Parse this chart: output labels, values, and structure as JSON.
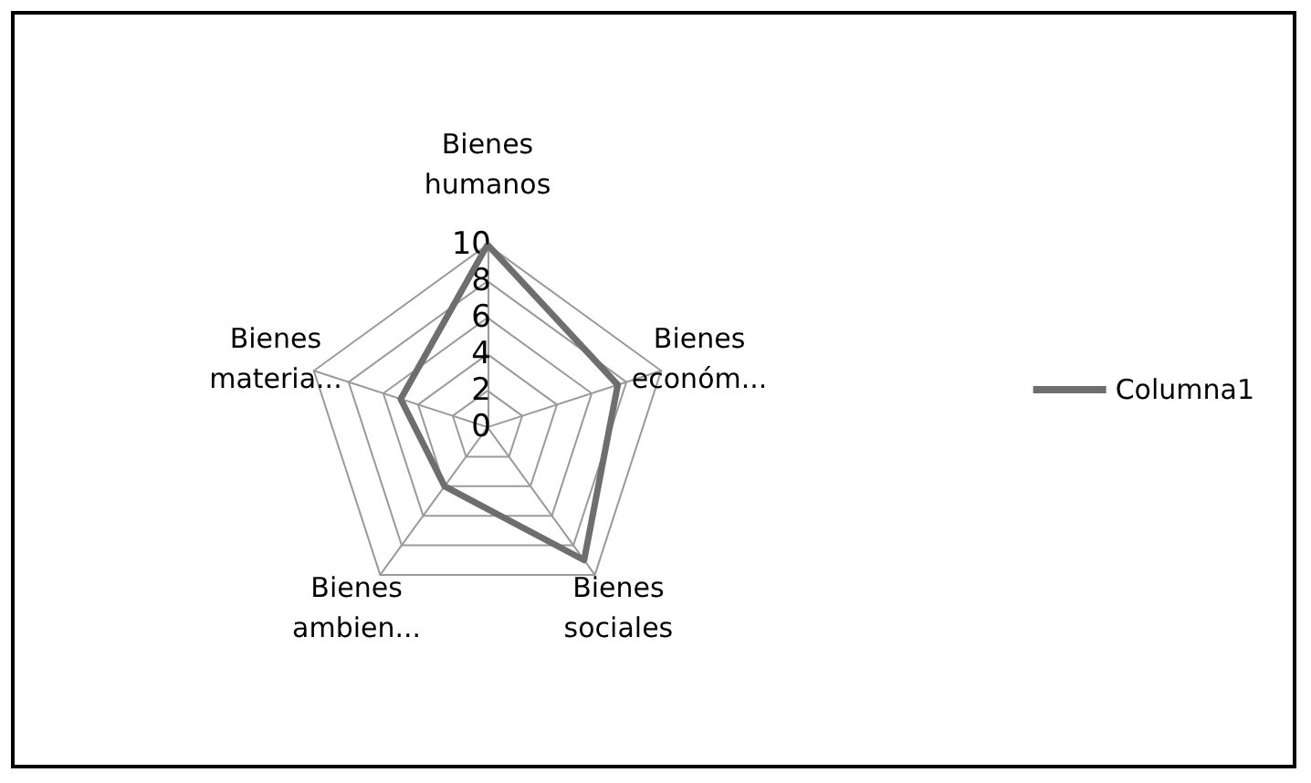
{
  "chart_data": {
    "type": "radar",
    "categories": [
      "Bienes humanos",
      "Bienes económ...",
      "Bienes sociales",
      "Bienes ambien...",
      "Bienes materia..."
    ],
    "series": [
      {
        "name": "Columna1",
        "color": "#6e6e6e",
        "values": [
          10,
          7.5,
          9,
          4,
          5
        ]
      }
    ],
    "ylim": [
      0,
      10
    ],
    "yticks": [
      0,
      2,
      4,
      6,
      8,
      10
    ],
    "legend": "right",
    "marker": "none",
    "grid": true
  }
}
